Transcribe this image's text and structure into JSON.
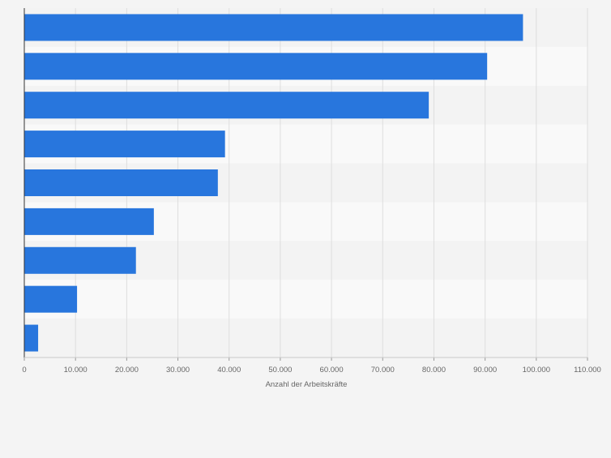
{
  "chart_data": {
    "type": "bar",
    "orientation": "horizontal",
    "title": "",
    "xlabel": "Anzahl der Arbeitskräfte",
    "ylabel": "",
    "categories": [
      "",
      "",
      "",
      "",
      "",
      "",
      "",
      "",
      ""
    ],
    "values": [
      97400,
      90400,
      79000,
      39200,
      37800,
      25300,
      21800,
      10300,
      2700
    ],
    "xlim": [
      0,
      110000
    ],
    "x_ticks": [
      0,
      10000,
      20000,
      30000,
      40000,
      50000,
      60000,
      70000,
      80000,
      90000,
      100000,
      110000
    ],
    "x_tick_labels": [
      "0",
      "10.000",
      "20.000",
      "30.000",
      "40.000",
      "50.000",
      "60.000",
      "70.000",
      "80.000",
      "90.000",
      "100.000",
      "110.000"
    ],
    "grid": true,
    "legend": "none",
    "colors": {
      "bar": "#2876dd",
      "background": "#f4f4f4",
      "band_dark": "#f3f3f3",
      "band_light": "#f9f9f9",
      "grid": "#dedede",
      "axis": "#333333",
      "tick_text": "#666666"
    }
  }
}
